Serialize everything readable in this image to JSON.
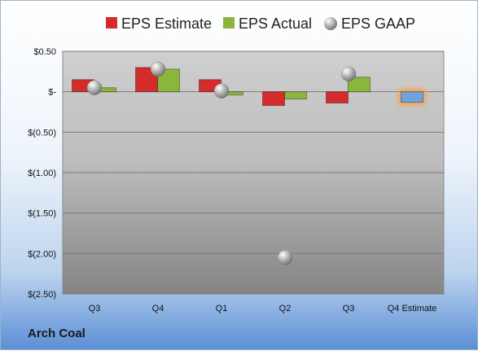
{
  "company": "Arch Coal",
  "chart_data": {
    "type": "bar",
    "categories": [
      "Q3",
      "Q4",
      "Q1",
      "Q2",
      "Q3",
      "Q4 Estimate"
    ],
    "series": [
      {
        "name": "EPS Estimate",
        "color": "#d42b2b",
        "values": [
          0.15,
          0.3,
          0.15,
          -0.17,
          -0.14,
          null
        ]
      },
      {
        "name": "EPS Actual",
        "color": "#8cb53c",
        "values": [
          0.05,
          0.28,
          -0.04,
          -0.09,
          0.18,
          null
        ]
      },
      {
        "name": "EPS GAAP",
        "color": "#a9a9a9",
        "marker": "sphere",
        "values": [
          0.05,
          0.28,
          0.01,
          -2.05,
          0.22,
          null
        ]
      },
      {
        "name": "",
        "color": "#6fa3dd",
        "highlight": "#f6a14b",
        "values": [
          null,
          null,
          null,
          null,
          null,
          -0.13
        ]
      }
    ],
    "ylim": [
      -2.5,
      0.5
    ],
    "yticks": [
      0.5,
      0,
      -0.5,
      -1.0,
      -1.5,
      -2.0,
      -2.5
    ],
    "ytick_labels": [
      "$0.50",
      "$-",
      "$(0.50)",
      "$(1.00)",
      "$(1.50)",
      "$(2.00)",
      "$(2.50)"
    ],
    "legend_position": "top",
    "grid": true
  }
}
